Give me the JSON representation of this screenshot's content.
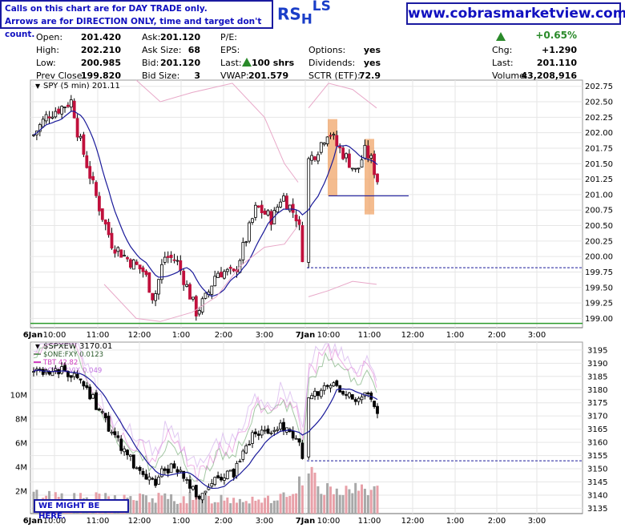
{
  "notice": {
    "line1": "Calls on this chart are for DAY TRADE only.",
    "line2": "Arrows are for DIRECTION ONLY, time and target don't count."
  },
  "ticker": {
    "main": "RS",
    "sub": "H",
    "sup": "LS"
  },
  "brand": "www.cobrasmarketview.com",
  "quote": {
    "open_label": "Open:",
    "open": "201.420",
    "high_label": "High:",
    "high": "202.210",
    "low_label": "Low:",
    "low": "200.985",
    "prev_label": "Prev Close:",
    "prev": "199.820",
    "ask_label": "Ask:",
    "ask": "201.120",
    "asksize_label": "Ask Size:",
    "asksize": "68",
    "bid_label": "Bid:",
    "bid": "201.120",
    "bidsize_label": "Bid Size:",
    "bidsize": "3",
    "pe_label": "P/E:",
    "eps_label": "EPS:",
    "last_label": "Last:",
    "last_shares": "100 shrs",
    "vwap_label": "VWAP:",
    "vwap": "201.579",
    "options_label": "Options:",
    "options": "yes",
    "dividends_label": "Dividends:",
    "dividends": "yes",
    "sctr_label": "SCTR (ETF):",
    "sctr": "72.9",
    "pct_change": "+0.65%",
    "chg_label": "Chg:",
    "chg": "+1.290",
    "last2_label": "Last:",
    "last2": "201.110",
    "volume_label": "Volume:",
    "volume": "43,208,916"
  },
  "callout": "WE MIGHT BE HERE.",
  "colors": {
    "up": "#000000",
    "down": "#c0103c",
    "ma": "#1a1a9a",
    "band": "#e8a8c8",
    "box": "#f0a060",
    "volume": "#a8a8a8",
    "volume_down": "#e8a0a8"
  },
  "chart_data": [
    {
      "type": "candlestick",
      "title": "SPY (5 min) 201.11",
      "x_ticks": [
        "6Jan",
        "10:00",
        "11:00",
        "12:00",
        "1:00",
        "2:00",
        "3:00",
        "7Jan",
        "10:00",
        "11:00",
        "12:00",
        "1:00",
        "2:00",
        "3:00"
      ],
      "y_ticks": [
        202.75,
        202.5,
        202.25,
        202.0,
        201.75,
        201.5,
        201.25,
        201.0,
        200.75,
        200.5,
        200.25,
        200.0,
        199.75,
        199.5,
        199.25,
        199.0
      ],
      "ylim": [
        198.85,
        202.85
      ],
      "prev_close_line": 199.82,
      "support_line": 200.98,
      "current_price": 201.11
    },
    {
      "type": "candlestick",
      "title": "$SPXEW 3170.01",
      "legend": [
        {
          "name": "$ONE:FXY 0.0123",
          "color": "#5a9a5a"
        },
        {
          "name": "TBT 42.82",
          "color": "#d040c0"
        },
        {
          "name": "$ONE:$VIX 0.049",
          "color": "#c070e0"
        }
      ],
      "x_ticks": [
        "6Jan",
        "10:00",
        "11:00",
        "12:00",
        "1:00",
        "2:00",
        "3:00",
        "7Jan",
        "10:00",
        "11:00",
        "12:00",
        "1:00",
        "2:00",
        "3:00"
      ],
      "y_ticks": [
        3195,
        3190,
        3185,
        3180,
        3175,
        3170,
        3165,
        3160,
        3155,
        3150,
        3145,
        3140,
        3135
      ],
      "ylim": [
        3133,
        3198
      ],
      "volume_ticks": [
        "10M",
        "8M",
        "6M",
        "4M",
        "2M"
      ],
      "support_line": 3153,
      "current_price": 3170.01
    }
  ]
}
